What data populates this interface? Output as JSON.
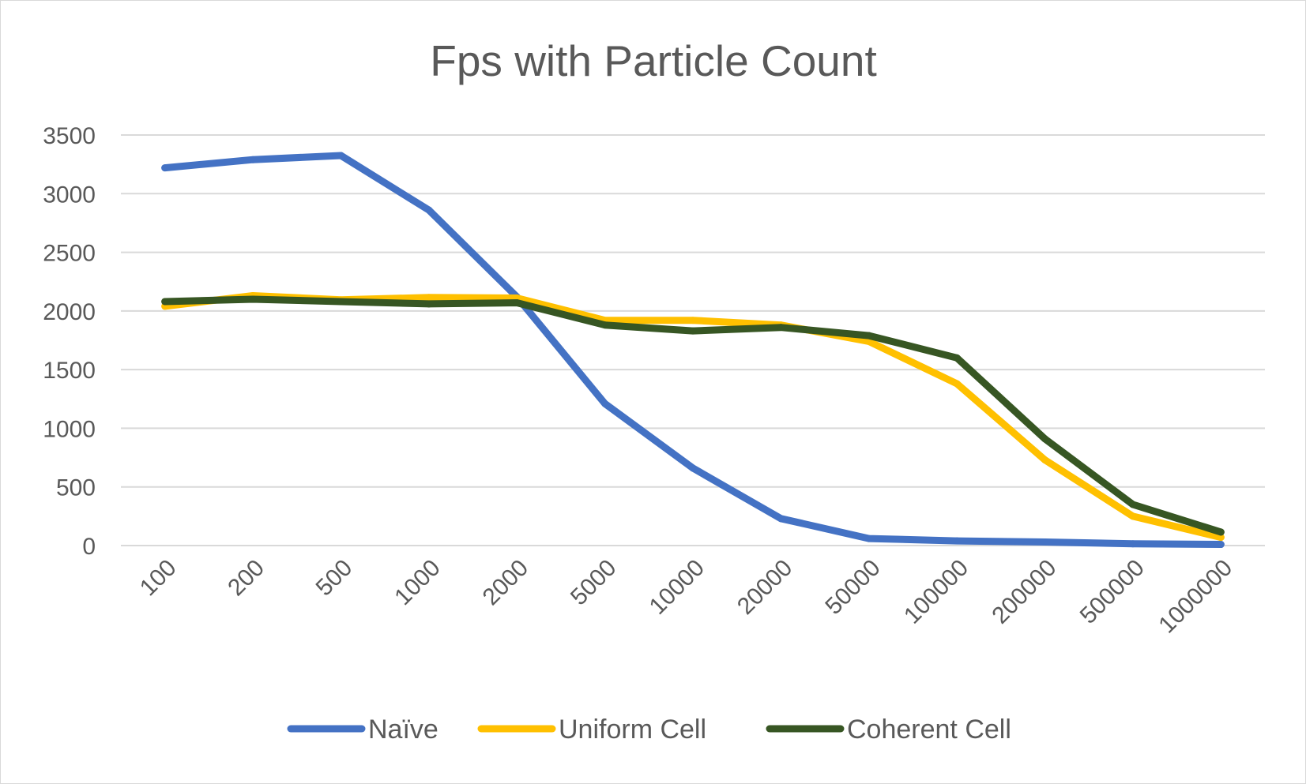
{
  "chart_data": {
    "type": "line",
    "title": "Fps with Particle Count",
    "xlabel": "",
    "ylabel": "",
    "categories": [
      "100",
      "200",
      "500",
      "1000",
      "2000",
      "5000",
      "10000",
      "20000",
      "50000",
      "100000",
      "200000",
      "500000",
      "1000000"
    ],
    "ylim": [
      0,
      3500
    ],
    "yticks": [
      "0",
      "500",
      "1000",
      "1500",
      "2000",
      "2500",
      "3000",
      "3500"
    ],
    "grid": true,
    "legend_position": "bottom",
    "series": [
      {
        "name": "Naïve",
        "color": "#4472c4",
        "values": [
          3220,
          3290,
          3325,
          2860,
          2120,
          1210,
          660,
          230,
          60,
          40,
          30,
          15,
          10
        ]
      },
      {
        "name": "Uniform Cell",
        "color": "#ffc000",
        "values": [
          2040,
          2130,
          2095,
          2115,
          2110,
          1920,
          1920,
          1880,
          1740,
          1380,
          730,
          250,
          70
        ]
      },
      {
        "name": "Coherent Cell",
        "color": "#375623",
        "values": [
          2080,
          2100,
          2080,
          2060,
          2070,
          1880,
          1830,
          1860,
          1790,
          1600,
          910,
          350,
          115
        ]
      }
    ]
  }
}
